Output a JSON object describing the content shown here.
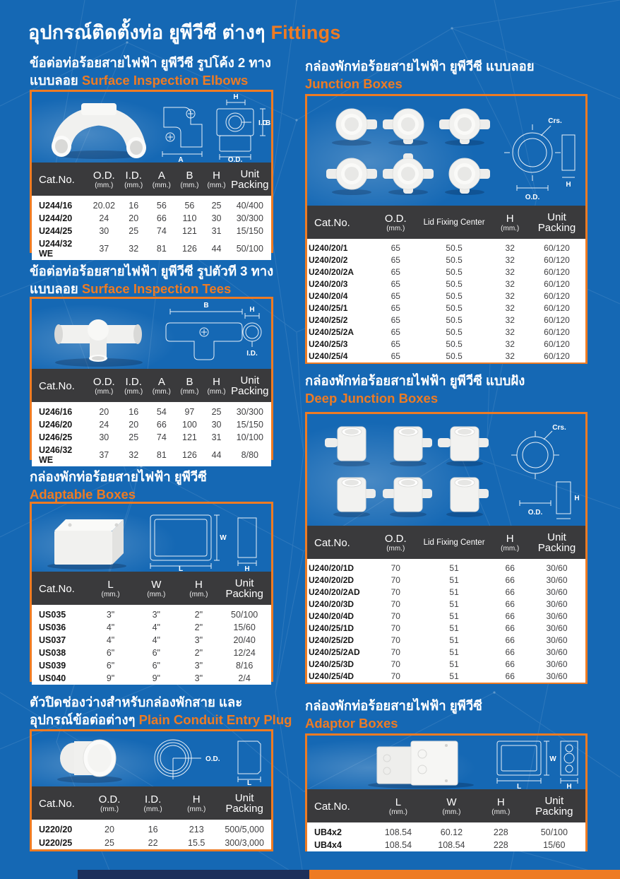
{
  "page": {
    "main_title_th": "อุปกรณ์ติดตั้งท่อ ยูพีวีซี ต่างๆ",
    "main_title_en": "Fittings"
  },
  "colors": {
    "background_blue": "#1568b4",
    "accent_orange": "#ee7b23",
    "table_header_dark": "#3a3a3c",
    "footer_navy": "#1c2f5a"
  },
  "sections": [
    {
      "id": "surface-inspection-elbows",
      "title_th": "ข้อต่อท่อร้อยสายไฟฟ้า ยูพีวีซี รูปโค้ง 2 ทาง",
      "title_th2": "แบบลอย",
      "title_en": "Surface Inspection Elbows",
      "diagram_labels": [
        "A",
        "H",
        "I.D.",
        "B",
        "O.D."
      ],
      "columns": [
        {
          "label": "Cat.No."
        },
        {
          "label": "O.D.",
          "sub": "(mm.)"
        },
        {
          "label": "I.D.",
          "sub": "(mm.)"
        },
        {
          "label": "A",
          "sub": "(mm.)"
        },
        {
          "label": "B",
          "sub": "(mm.)"
        },
        {
          "label": "H",
          "sub": "(mm.)"
        },
        {
          "label": "Unit",
          "label2": "Packing"
        }
      ],
      "rows": [
        [
          "U244/16",
          "20.02",
          "16",
          "56",
          "56",
          "25",
          "40/400"
        ],
        [
          "U244/20",
          "24",
          "20",
          "66",
          "110",
          "30",
          "30/300"
        ],
        [
          "U244/25",
          "30",
          "25",
          "74",
          "121",
          "31",
          "15/150"
        ],
        [
          "U244/32 WE",
          "37",
          "32",
          "81",
          "126",
          "44",
          "50/100"
        ]
      ]
    },
    {
      "id": "surface-inspection-tees",
      "title_th": "ข้อต่อท่อร้อยสายไฟฟ้า ยูพีวีซี รูปตัวที 3 ทาง",
      "title_th2": "แบบลอย",
      "title_en": "Surface Inspection Tees",
      "diagram_labels": [
        "B",
        "H",
        "I.D."
      ],
      "columns": [
        {
          "label": "Cat.No."
        },
        {
          "label": "O.D.",
          "sub": "(mm.)"
        },
        {
          "label": "I.D.",
          "sub": "(mm.)"
        },
        {
          "label": "A",
          "sub": "(mm.)"
        },
        {
          "label": "B",
          "sub": "(mm.)"
        },
        {
          "label": "H",
          "sub": "(mm.)"
        },
        {
          "label": "Unit",
          "label2": "Packing"
        }
      ],
      "rows": [
        [
          "U246/16",
          "20",
          "16",
          "54",
          "97",
          "25",
          "30/300"
        ],
        [
          "U246/20",
          "24",
          "20",
          "66",
          "100",
          "30",
          "15/150"
        ],
        [
          "U246/25",
          "30",
          "25",
          "74",
          "121",
          "31",
          "10/100"
        ],
        [
          "U246/32 WE",
          "37",
          "32",
          "81",
          "126",
          "44",
          "8/80"
        ]
      ]
    },
    {
      "id": "adaptable-boxes",
      "title_th": "กล่องพักท่อร้อยสายไฟฟ้า ยูพีวีซี",
      "title_th2": "",
      "title_en": "Adaptable Boxes",
      "diagram_labels": [
        "W",
        "L",
        "H"
      ],
      "columns": [
        {
          "label": "Cat.No."
        },
        {
          "label": "L",
          "sub": "(mm.)"
        },
        {
          "label": "W",
          "sub": "(mm.)"
        },
        {
          "label": "H",
          "sub": "(mm.)"
        },
        {
          "label": "Unit",
          "label2": "Packing"
        }
      ],
      "rows": [
        [
          "US035",
          "3\"",
          "3\"",
          "2\"",
          "50/100"
        ],
        [
          "US036",
          "4\"",
          "4\"",
          "2\"",
          "15/60"
        ],
        [
          "US037",
          "4\"",
          "4\"",
          "3\"",
          "20/40"
        ],
        [
          "US038",
          "6\"",
          "6\"",
          "2\"",
          "12/24"
        ],
        [
          "US039",
          "6\"",
          "6\"",
          "3\"",
          "8/16"
        ],
        [
          "US040",
          "9\"",
          "9\"",
          "3\"",
          "2/4"
        ]
      ]
    },
    {
      "id": "plain-conduit-entry-plug",
      "title_th": "ตัวปิดช่องว่างสำหรับกล่องพักสาย และ",
      "title_th2": "อุปกรณ์ข้อต่อต่างๆ",
      "title_en": "Plain Conduit Entry Plug",
      "diagram_labels": [
        "O.D.",
        "L"
      ],
      "columns": [
        {
          "label": "Cat.No."
        },
        {
          "label": "O.D.",
          "sub": "(mm.)"
        },
        {
          "label": "I.D.",
          "sub": "(mm.)"
        },
        {
          "label": "H",
          "sub": "(mm.)"
        },
        {
          "label": "Unit",
          "label2": "Packing"
        }
      ],
      "rows": [
        [
          "U220/20",
          "20",
          "16",
          "213",
          "500/5,000"
        ],
        [
          "U220/25",
          "25",
          "22",
          "15.5",
          "300/3,000"
        ]
      ]
    },
    {
      "id": "junction-boxes",
      "title_th": "กล่องพักท่อร้อยสายไฟฟ้า ยูพีวีซี แบบลอย",
      "title_th2": "",
      "title_en": "Junction Boxes",
      "diagram_labels": [
        "Crs.",
        "O.D.",
        "H"
      ],
      "columns": [
        {
          "label": "Cat.No."
        },
        {
          "label": "O.D.",
          "sub": "(mm.)"
        },
        {
          "label": "Lid Fixing Center",
          "small": true
        },
        {
          "label": "H",
          "sub": "(mm.)"
        },
        {
          "label": "Unit",
          "label2": "Packing"
        }
      ],
      "rows": [
        [
          "U240/20/1",
          "65",
          "50.5",
          "32",
          "60/120"
        ],
        [
          "U240/20/2",
          "65",
          "50.5",
          "32",
          "60/120"
        ],
        [
          "U240/20/2A",
          "65",
          "50.5",
          "32",
          "60/120"
        ],
        [
          "U240/20/3",
          "65",
          "50.5",
          "32",
          "60/120"
        ],
        [
          "U240/20/4",
          "65",
          "50.5",
          "32",
          "60/120"
        ],
        [
          "U240/25/1",
          "65",
          "50.5",
          "32",
          "60/120"
        ],
        [
          "U240/25/2",
          "65",
          "50.5",
          "32",
          "60/120"
        ],
        [
          "U240/25/2A",
          "65",
          "50.5",
          "32",
          "60/120"
        ],
        [
          "U240/25/3",
          "65",
          "50.5",
          "32",
          "60/120"
        ],
        [
          "U240/25/4",
          "65",
          "50.5",
          "32",
          "60/120"
        ]
      ]
    },
    {
      "id": "deep-junction-boxes",
      "title_th": "กล่องพักท่อร้อยสายไฟฟ้า ยูพีวีซี แบบฝัง",
      "title_th2": "",
      "title_en": "Deep Junction Boxes",
      "diagram_labels": [
        "Crs.",
        "O.D.",
        "H"
      ],
      "columns": [
        {
          "label": "Cat.No."
        },
        {
          "label": "O.D.",
          "sub": "(mm.)"
        },
        {
          "label": "Lid Fixing Center",
          "small": true
        },
        {
          "label": "H",
          "sub": "(mm.)"
        },
        {
          "label": "Unit",
          "label2": "Packing"
        }
      ],
      "rows": [
        [
          "U240/20/1D",
          "70",
          "51",
          "66",
          "30/60"
        ],
        [
          "U240/20/2D",
          "70",
          "51",
          "66",
          "30/60"
        ],
        [
          "U240/20/2AD",
          "70",
          "51",
          "66",
          "30/60"
        ],
        [
          "U240/20/3D",
          "70",
          "51",
          "66",
          "30/60"
        ],
        [
          "U240/20/4D",
          "70",
          "51",
          "66",
          "30/60"
        ],
        [
          "U240/25/1D",
          "70",
          "51",
          "66",
          "30/60"
        ],
        [
          "U240/25/2D",
          "70",
          "51",
          "66",
          "30/60"
        ],
        [
          "U240/25/2AD",
          "70",
          "51",
          "66",
          "30/60"
        ],
        [
          "U240/25/3D",
          "70",
          "51",
          "66",
          "30/60"
        ],
        [
          "U240/25/4D",
          "70",
          "51",
          "66",
          "30/60"
        ]
      ]
    },
    {
      "id": "adaptor-boxes",
      "title_th": "กล่องพักท่อร้อยสายไฟฟ้า ยูพีวีซี",
      "title_th2": "",
      "title_en": "Adaptor Boxes",
      "diagram_labels": [
        "W",
        "L",
        "H"
      ],
      "columns": [
        {
          "label": "Cat.No."
        },
        {
          "label": "L",
          "sub": "(mm.)"
        },
        {
          "label": "W",
          "sub": "(mm.)"
        },
        {
          "label": "H",
          "sub": "(mm.)"
        },
        {
          "label": "Unit",
          "label2": "Packing"
        }
      ],
      "rows": [
        [
          "UB4x2",
          "108.54",
          "60.12",
          "228",
          "50/100"
        ],
        [
          "UB4x4",
          "108.54",
          "108.54",
          "228",
          "15/60"
        ]
      ]
    }
  ]
}
